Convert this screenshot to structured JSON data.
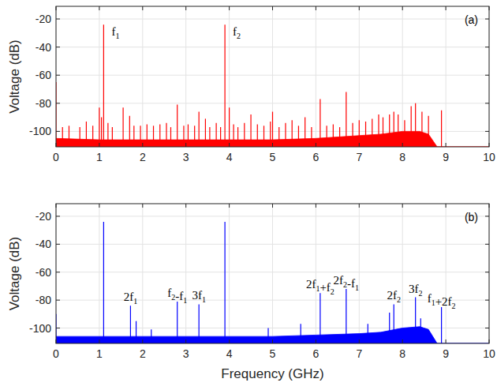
{
  "chart_data": [
    {
      "type": "line",
      "title": "(a)",
      "ylabel": "Voltage (dB)",
      "xlim": [
        0,
        10
      ],
      "ylim": [
        -111,
        -11
      ],
      "xticks": [
        0,
        1,
        2,
        3,
        4,
        5,
        6,
        7,
        8,
        9,
        10
      ],
      "yticks": [
        -100,
        -80,
        -60,
        -40,
        -20
      ],
      "grid": true,
      "series": [
        {
          "type": "area",
          "color": "#ff0000",
          "x": [
            0,
            1,
            2,
            3,
            4,
            5,
            6,
            7,
            7.5,
            8,
            8.4,
            8.6,
            8.8,
            10
          ],
          "values": [
            -105,
            -106,
            -106,
            -106,
            -106,
            -106,
            -105,
            -103,
            -102,
            -100,
            -100,
            -102,
            -111,
            -111
          ]
        },
        {
          "type": "stem",
          "color": "#ff0000",
          "x": [
            0,
            0.15,
            0.3,
            0.55,
            0.7,
            0.85,
            1.0,
            1.05,
            1.1,
            1.2,
            1.3,
            1.55,
            1.7,
            1.8,
            1.95,
            2.1,
            2.25,
            2.4,
            2.55,
            2.65,
            2.8,
            2.95,
            3.05,
            3.2,
            3.3,
            3.45,
            3.55,
            3.7,
            3.8,
            3.9,
            4.0,
            4.1,
            4.2,
            4.35,
            4.5,
            4.65,
            4.8,
            4.95,
            5.0,
            5.15,
            5.3,
            5.45,
            5.6,
            5.75,
            5.9,
            6.1,
            6.25,
            6.4,
            6.55,
            6.7,
            6.85,
            7.0,
            7.15,
            7.3,
            7.45,
            7.55,
            7.7,
            7.8,
            7.9,
            8.05,
            8.2,
            8.3,
            8.45,
            8.6,
            8.9
          ],
          "values": [
            -65,
            -97,
            -96,
            -97,
            -93,
            -96,
            -83,
            -90,
            -24,
            -94,
            -97,
            -83,
            -89,
            -96,
            -96,
            -95,
            -96,
            -95,
            -94,
            -97,
            -81,
            -96,
            -95,
            -96,
            -86,
            -91,
            -97,
            -94,
            -97,
            -24,
            -83,
            -95,
            -97,
            -94,
            -88,
            -95,
            -96,
            -93,
            -86,
            -97,
            -94,
            -92,
            -96,
            -90,
            -97,
            -77,
            -96,
            -95,
            -97,
            -72,
            -94,
            -92,
            -93,
            -91,
            -88,
            -90,
            -88,
            -86,
            -88,
            -92,
            -82,
            -80,
            -86,
            -89,
            -85
          ]
        }
      ],
      "annotations": [
        {
          "text": "f1",
          "x": 1.1,
          "y": -24
        },
        {
          "text": "f2",
          "x": 3.9,
          "y": -24
        }
      ]
    },
    {
      "type": "line",
      "title": "(b)",
      "xlabel": "Frequency (GHz)",
      "ylabel": "Voltage (dB)",
      "xlim": [
        0,
        10
      ],
      "ylim": [
        -111,
        -11
      ],
      "xticks": [
        0,
        1,
        2,
        3,
        4,
        5,
        6,
        7,
        8,
        9,
        10
      ],
      "yticks": [
        -100,
        -80,
        -60,
        -40,
        -20
      ],
      "grid": true,
      "series": [
        {
          "type": "area",
          "color": "#0000ff",
          "x": [
            0,
            1,
            2,
            3,
            4,
            5,
            6,
            7,
            7.5,
            8,
            8.4,
            8.6,
            8.8,
            10
          ],
          "values": [
            -106,
            -106,
            -106,
            -106,
            -106,
            -106,
            -105,
            -104,
            -103,
            -100,
            -99,
            -101,
            -111,
            -111
          ]
        },
        {
          "type": "stem",
          "color": "#0000ff",
          "x": [
            0,
            1.1,
            1.72,
            1.85,
            2.2,
            2.8,
            3.3,
            3.9,
            4.9,
            5.65,
            6.1,
            6.7,
            7.2,
            7.7,
            7.8,
            8.3,
            8.42,
            8.9
          ],
          "values": [
            -90,
            -24,
            -84,
            -95,
            -101,
            -81,
            -83,
            -24,
            -100,
            -97,
            -75,
            -72,
            -97,
            -89,
            -83,
            -78,
            -93,
            -85
          ]
        }
      ],
      "annotations": [
        {
          "text": "2f1",
          "x": 1.72,
          "y": -84
        },
        {
          "text": "f2-f1",
          "x": 2.8,
          "y": -81
        },
        {
          "text": "3f1",
          "x": 3.3,
          "y": -83
        },
        {
          "text": "2f1+f2",
          "x": 6.1,
          "y": -75
        },
        {
          "text": "2f2-f1",
          "x": 6.7,
          "y": -72
        },
        {
          "text": "2f2",
          "x": 7.8,
          "y": -83
        },
        {
          "text": "3f2",
          "x": 8.3,
          "y": -78
        },
        {
          "text": "f1+2f2",
          "x": 8.9,
          "y": -85
        }
      ]
    }
  ]
}
